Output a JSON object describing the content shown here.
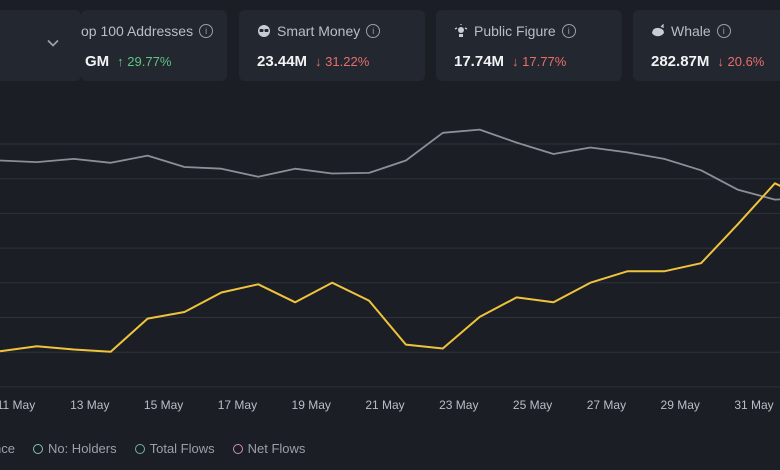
{
  "cards": [
    {
      "label": "op 100 Addresses",
      "value": "GM",
      "change": "29.77%",
      "direction": "up",
      "icon": "top-addresses-icon"
    },
    {
      "label": "Smart Money",
      "value": "23.44M",
      "change": "31.22%",
      "direction": "down",
      "icon": "smart-money-icon"
    },
    {
      "label": "Public Figure",
      "value": "17.74M",
      "change": "17.77%",
      "direction": "down",
      "icon": "public-figure-icon"
    },
    {
      "label": "Whale",
      "value": "282.87M",
      "change": "20.6%",
      "direction": "down",
      "icon": "whale-icon"
    }
  ],
  "arrows": {
    "up": "↑",
    "down": "↓"
  },
  "legend": [
    {
      "label": "nce",
      "color": "#f0c33c"
    },
    {
      "label": "No: Holders",
      "color": "#7cc6b8"
    },
    {
      "label": "Total Flows",
      "color": "#6fb49a"
    },
    {
      "label": "Net Flows",
      "color": "#d48ac2"
    }
  ],
  "chart_data": {
    "type": "line",
    "x_tick_labels": [
      "11 May",
      "13 May",
      "15 May",
      "17 May",
      "19 May",
      "21 May",
      "23 May",
      "25 May",
      "27 May",
      "29 May",
      "31 May"
    ],
    "series": [
      {
        "color": "#8a8f98",
        "values": [
          69.5,
          69,
          70,
          68.8,
          71,
          67.5,
          67,
          64.5,
          67,
          65.5,
          65.7,
          69.5,
          78,
          79,
          75,
          71.5,
          73.5,
          72,
          70,
          66.5,
          60.5,
          57.5,
          58
        ]
      },
      {
        "color": "#f0c33c",
        "values": [
          11,
          12.5,
          11.5,
          10.8,
          21,
          23,
          29,
          31.5,
          26,
          32,
          26.5,
          13,
          11.8,
          21.5,
          27.5,
          26,
          32,
          35.5,
          35.5,
          38,
          50,
          62.5,
          57
        ]
      }
    ]
  }
}
